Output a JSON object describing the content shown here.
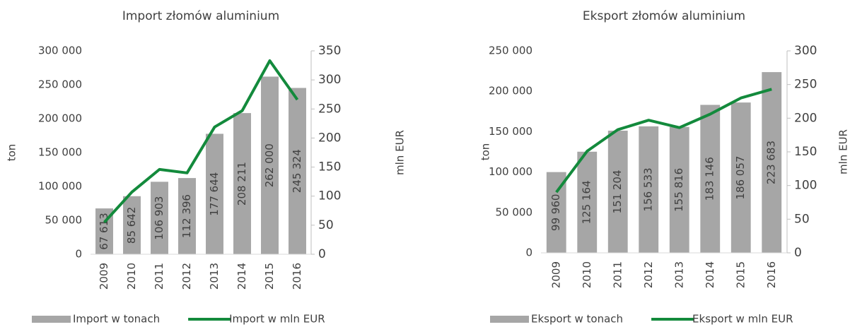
{
  "chart_data": [
    {
      "type": "bar",
      "title": "Import złomów aluminium",
      "y_label": "ton",
      "y2_label": "mln EUR",
      "categories": [
        "2009",
        "2010",
        "2011",
        "2012",
        "2013",
        "2014",
        "2015",
        "2016"
      ],
      "series": [
        {
          "name": "Import w tonach",
          "color": "#a6a6a6",
          "values": [
            67613,
            85642,
            106903,
            112396,
            177644,
            208211,
            262000,
            245324
          ],
          "value_labels": [
            "67 613",
            "85 642",
            "106 903",
            "112 396",
            "177 644",
            "208 211",
            "262 000",
            "245 324"
          ]
        },
        {
          "name": "Import w mln EUR",
          "color": "#138a3c",
          "axis": "y2",
          "values": [
            55,
            107,
            146,
            140,
            219,
            247,
            333,
            266
          ]
        }
      ],
      "ylim": [
        0,
        300000
      ],
      "yticks": [
        {
          "value": 0,
          "label": "0"
        },
        {
          "value": 50000,
          "label": "50 000"
        },
        {
          "value": 100000,
          "label": "100 000"
        },
        {
          "value": 150000,
          "label": "150 000"
        },
        {
          "value": 200000,
          "label": "200 000"
        },
        {
          "value": 250000,
          "label": "250 000"
        },
        {
          "value": 300000,
          "label": "300 000"
        }
      ],
      "y2lim": [
        0,
        350
      ],
      "y2ticks": [
        0,
        50,
        100,
        150,
        200,
        250,
        300,
        350
      ]
    },
    {
      "type": "bar",
      "title": "Eksport złomów aluminium",
      "y_label": "ton",
      "y2_label": "mln EUR",
      "categories": [
        "2009",
        "2010",
        "2011",
        "2012",
        "2013",
        "2014",
        "2015",
        "2016"
      ],
      "series": [
        {
          "name": "Eksport w tonach",
          "color": "#a6a6a6",
          "values": [
            99960,
            125164,
            151204,
            156533,
            155816,
            183146,
            186057,
            223683
          ],
          "value_labels": [
            "99 960",
            "125 164",
            "151 204",
            "156 533",
            "155 816",
            "183 146",
            "186 057",
            "223 683"
          ]
        },
        {
          "name": "Eksport w mln EUR",
          "color": "#138a3c",
          "axis": "y2",
          "values": [
            90,
            151,
            183,
            197,
            186,
            206,
            230,
            243
          ]
        }
      ],
      "ylim": [
        0,
        250000
      ],
      "yticks": [
        {
          "value": 0,
          "label": "0"
        },
        {
          "value": 50000,
          "label": "50 000"
        },
        {
          "value": 100000,
          "label": "100 000"
        },
        {
          "value": 150000,
          "label": "150 000"
        },
        {
          "value": 200000,
          "label": "200 000"
        },
        {
          "value": 250000,
          "label": "250 000"
        }
      ],
      "y2lim": [
        0,
        300
      ],
      "y2ticks": [
        0,
        50,
        100,
        150,
        200,
        250,
        300
      ]
    }
  ]
}
